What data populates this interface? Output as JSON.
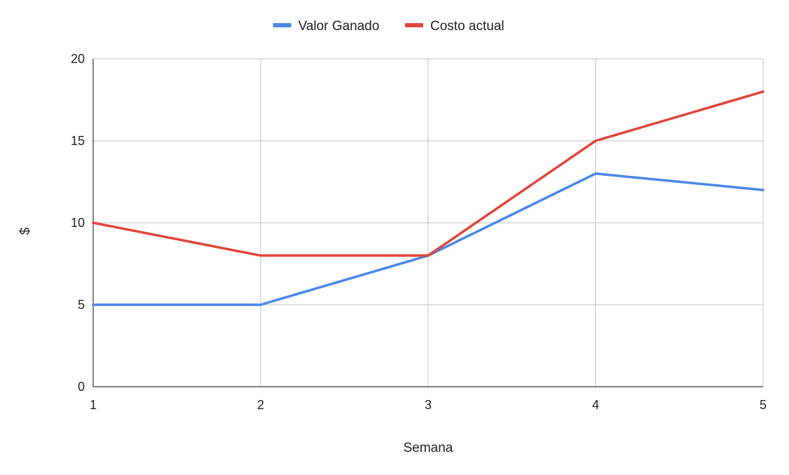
{
  "chart_data": {
    "type": "line",
    "title": "",
    "xlabel": "Semana",
    "ylabel": "$",
    "categories": [
      1,
      2,
      3,
      4,
      5
    ],
    "x_tick_labels": [
      "1",
      "2",
      "3",
      "4",
      "5"
    ],
    "y_tick_labels": [
      "0",
      "5",
      "10",
      "15",
      "20"
    ],
    "y_ticks": [
      0,
      5,
      10,
      15,
      20
    ],
    "ylim": [
      0,
      20
    ],
    "xlim": [
      1,
      5
    ],
    "grid": true,
    "legend_position": "top-center",
    "series": [
      {
        "name": "Valor Ganado",
        "color": "#4a86e8",
        "values": [
          5,
          5,
          8,
          13,
          12
        ]
      },
      {
        "name": "Costo actual",
        "color": "#e0453a",
        "values": [
          10,
          8,
          8,
          15,
          18
        ]
      }
    ]
  }
}
